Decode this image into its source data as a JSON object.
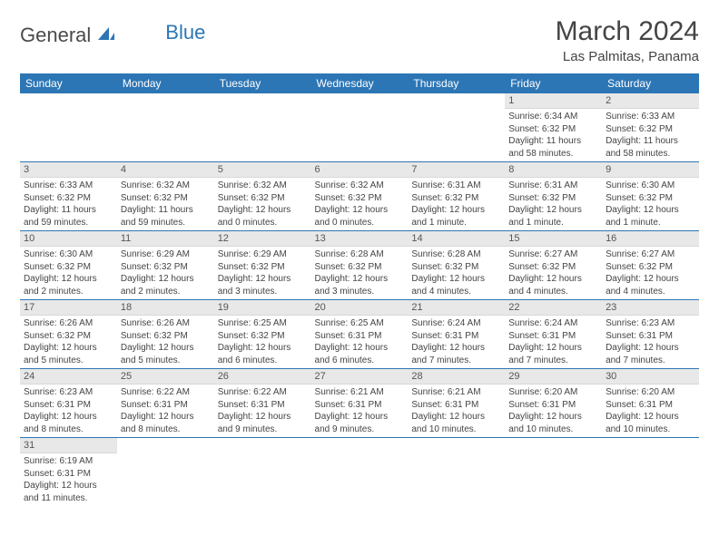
{
  "logo": {
    "part1": "General",
    "part2": "Blue",
    "color_primary": "#2d76b5",
    "color_text": "#4a4a4a"
  },
  "title": "March 2024",
  "location": "Las Palmitas, Panama",
  "colors": {
    "header_bg": "#2d76b5",
    "header_fg": "#ffffff",
    "daynum_bg": "#e8e8e8",
    "cell_border": "#2d76b5",
    "body_text": "#444444"
  },
  "weekdays": [
    "Sunday",
    "Monday",
    "Tuesday",
    "Wednesday",
    "Thursday",
    "Friday",
    "Saturday"
  ],
  "first_weekday_index": 5,
  "days": [
    {
      "n": 1,
      "sunrise": "6:34 AM",
      "sunset": "6:32 PM",
      "daylight": "11 hours and 58 minutes."
    },
    {
      "n": 2,
      "sunrise": "6:33 AM",
      "sunset": "6:32 PM",
      "daylight": "11 hours and 58 minutes."
    },
    {
      "n": 3,
      "sunrise": "6:33 AM",
      "sunset": "6:32 PM",
      "daylight": "11 hours and 59 minutes."
    },
    {
      "n": 4,
      "sunrise": "6:32 AM",
      "sunset": "6:32 PM",
      "daylight": "11 hours and 59 minutes."
    },
    {
      "n": 5,
      "sunrise": "6:32 AM",
      "sunset": "6:32 PM",
      "daylight": "12 hours and 0 minutes."
    },
    {
      "n": 6,
      "sunrise": "6:32 AM",
      "sunset": "6:32 PM",
      "daylight": "12 hours and 0 minutes."
    },
    {
      "n": 7,
      "sunrise": "6:31 AM",
      "sunset": "6:32 PM",
      "daylight": "12 hours and 1 minute."
    },
    {
      "n": 8,
      "sunrise": "6:31 AM",
      "sunset": "6:32 PM",
      "daylight": "12 hours and 1 minute."
    },
    {
      "n": 9,
      "sunrise": "6:30 AM",
      "sunset": "6:32 PM",
      "daylight": "12 hours and 1 minute."
    },
    {
      "n": 10,
      "sunrise": "6:30 AM",
      "sunset": "6:32 PM",
      "daylight": "12 hours and 2 minutes."
    },
    {
      "n": 11,
      "sunrise": "6:29 AM",
      "sunset": "6:32 PM",
      "daylight": "12 hours and 2 minutes."
    },
    {
      "n": 12,
      "sunrise": "6:29 AM",
      "sunset": "6:32 PM",
      "daylight": "12 hours and 3 minutes."
    },
    {
      "n": 13,
      "sunrise": "6:28 AM",
      "sunset": "6:32 PM",
      "daylight": "12 hours and 3 minutes."
    },
    {
      "n": 14,
      "sunrise": "6:28 AM",
      "sunset": "6:32 PM",
      "daylight": "12 hours and 4 minutes."
    },
    {
      "n": 15,
      "sunrise": "6:27 AM",
      "sunset": "6:32 PM",
      "daylight": "12 hours and 4 minutes."
    },
    {
      "n": 16,
      "sunrise": "6:27 AM",
      "sunset": "6:32 PM",
      "daylight": "12 hours and 4 minutes."
    },
    {
      "n": 17,
      "sunrise": "6:26 AM",
      "sunset": "6:32 PM",
      "daylight": "12 hours and 5 minutes."
    },
    {
      "n": 18,
      "sunrise": "6:26 AM",
      "sunset": "6:32 PM",
      "daylight": "12 hours and 5 minutes."
    },
    {
      "n": 19,
      "sunrise": "6:25 AM",
      "sunset": "6:32 PM",
      "daylight": "12 hours and 6 minutes."
    },
    {
      "n": 20,
      "sunrise": "6:25 AM",
      "sunset": "6:31 PM",
      "daylight": "12 hours and 6 minutes."
    },
    {
      "n": 21,
      "sunrise": "6:24 AM",
      "sunset": "6:31 PM",
      "daylight": "12 hours and 7 minutes."
    },
    {
      "n": 22,
      "sunrise": "6:24 AM",
      "sunset": "6:31 PM",
      "daylight": "12 hours and 7 minutes."
    },
    {
      "n": 23,
      "sunrise": "6:23 AM",
      "sunset": "6:31 PM",
      "daylight": "12 hours and 7 minutes."
    },
    {
      "n": 24,
      "sunrise": "6:23 AM",
      "sunset": "6:31 PM",
      "daylight": "12 hours and 8 minutes."
    },
    {
      "n": 25,
      "sunrise": "6:22 AM",
      "sunset": "6:31 PM",
      "daylight": "12 hours and 8 minutes."
    },
    {
      "n": 26,
      "sunrise": "6:22 AM",
      "sunset": "6:31 PM",
      "daylight": "12 hours and 9 minutes."
    },
    {
      "n": 27,
      "sunrise": "6:21 AM",
      "sunset": "6:31 PM",
      "daylight": "12 hours and 9 minutes."
    },
    {
      "n": 28,
      "sunrise": "6:21 AM",
      "sunset": "6:31 PM",
      "daylight": "12 hours and 10 minutes."
    },
    {
      "n": 29,
      "sunrise": "6:20 AM",
      "sunset": "6:31 PM",
      "daylight": "12 hours and 10 minutes."
    },
    {
      "n": 30,
      "sunrise": "6:20 AM",
      "sunset": "6:31 PM",
      "daylight": "12 hours and 10 minutes."
    },
    {
      "n": 31,
      "sunrise": "6:19 AM",
      "sunset": "6:31 PM",
      "daylight": "12 hours and 11 minutes."
    }
  ],
  "labels": {
    "sunrise": "Sunrise:",
    "sunset": "Sunset:",
    "daylight": "Daylight:"
  }
}
